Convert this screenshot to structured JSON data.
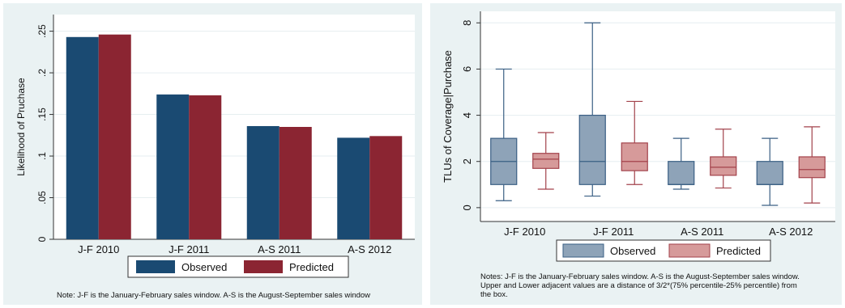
{
  "colors": {
    "observed_bar": "#1a4a72",
    "predicted_bar": "#8b2532",
    "observed_box": "#8ea3b8",
    "observed_line": "#3a5f84",
    "predicted_box": "#d69a9a",
    "predicted_line": "#a3424b",
    "plot_bg": "#ffffff",
    "panel_bg": "#eaf2f3"
  },
  "chart_data": [
    {
      "type": "bar",
      "title": "",
      "xlabel": "",
      "ylabel": "Likelihood of Pruchase",
      "ylim": [
        0,
        0.27
      ],
      "yticks": [
        {
          "value": 0,
          "label": "0"
        },
        {
          "value": 0.05,
          "label": ".05"
        },
        {
          "value": 0.1,
          "label": ".1"
        },
        {
          "value": 0.15,
          "label": ".15"
        },
        {
          "value": 0.2,
          "label": ".2"
        },
        {
          "value": 0.25,
          "label": ".25"
        }
      ],
      "grid": true,
      "legend_position": "bottom",
      "categories": [
        "J-F 2010",
        "J-F 2011",
        "A-S 2011",
        "A-S 2012"
      ],
      "series": [
        {
          "name": "Observed",
          "values": [
            0.243,
            0.174,
            0.136,
            0.122
          ]
        },
        {
          "name": "Predicted",
          "values": [
            0.246,
            0.173,
            0.135,
            0.124
          ]
        }
      ],
      "note": "Note: J-F is the January-February sales window. A-S is the August-September sales window"
    },
    {
      "type": "box",
      "title": "",
      "xlabel": "",
      "ylabel": "TLUs of Coverage|Purchase",
      "ylim": [
        -0.6,
        8.5
      ],
      "yticks": [
        {
          "value": 0,
          "label": "0"
        },
        {
          "value": 2,
          "label": "2"
        },
        {
          "value": 4,
          "label": "4"
        },
        {
          "value": 6,
          "label": "6"
        },
        {
          "value": 8,
          "label": "8"
        }
      ],
      "grid": true,
      "legend_position": "bottom",
      "categories": [
        "J-F 2010",
        "J-F 2011",
        "A-S 2011",
        "A-S 2012"
      ],
      "series": [
        {
          "name": "Observed",
          "boxes": [
            {
              "low": 0.3,
              "q1": 1.0,
              "median": 2.0,
              "q3": 3.0,
              "high": 6.0
            },
            {
              "low": 0.5,
              "q1": 1.0,
              "median": 2.0,
              "q3": 4.0,
              "high": 8.0
            },
            {
              "low": 0.8,
              "q1": 1.0,
              "median": 1.0,
              "q3": 2.0,
              "high": 3.0
            },
            {
              "low": 0.1,
              "q1": 1.0,
              "median": 1.0,
              "q3": 2.0,
              "high": 3.0
            }
          ]
        },
        {
          "name": "Predicted",
          "boxes": [
            {
              "low": 0.8,
              "q1": 1.7,
              "median": 2.1,
              "q3": 2.35,
              "high": 3.25
            },
            {
              "low": 1.0,
              "q1": 1.6,
              "median": 2.0,
              "q3": 2.8,
              "high": 4.6
            },
            {
              "low": 0.85,
              "q1": 1.4,
              "median": 1.75,
              "q3": 2.2,
              "high": 3.4
            },
            {
              "low": 0.2,
              "q1": 1.3,
              "median": 1.65,
              "q3": 2.2,
              "high": 3.5
            }
          ]
        }
      ],
      "note": [
        "Notes: J-F is the January-February sales window. A-S is the August-September sales window.",
        "Upper and Lower adjacent values are a distance of 3/2*(75% percentile-25% percentile) from",
        "the box."
      ]
    }
  ]
}
